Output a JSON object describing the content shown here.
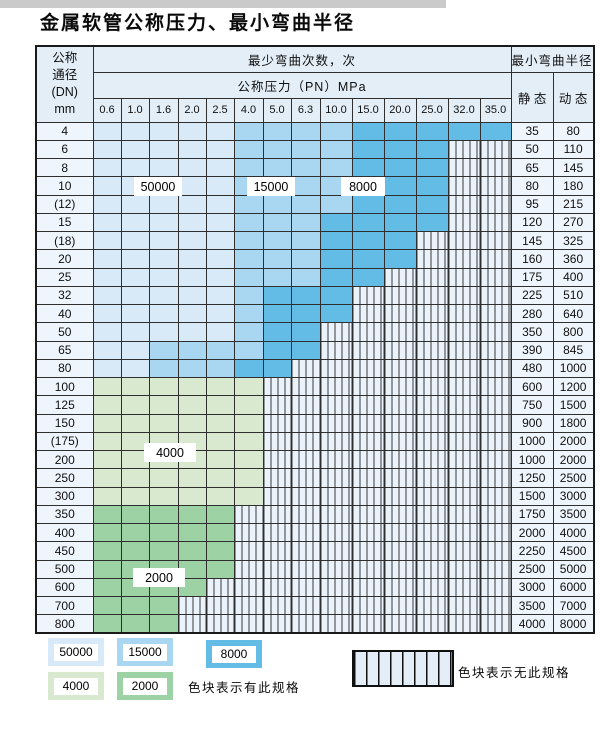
{
  "page": {
    "title": "金属软管公称压力、最小弯曲半径"
  },
  "table": {
    "corner_lines": [
      "公称",
      "通径",
      "(DN)",
      "mm"
    ],
    "bend_cycles_header": "最少弯曲次数，次",
    "pressure_header": "公称压力（PN）MPa",
    "radius_header": "最小弯曲半径",
    "static_header": "静 态",
    "dynamic_header": "动 态",
    "pressure_cols": [
      "0.6",
      "1.0",
      "1.6",
      "2.0",
      "2.5",
      "4.0",
      "5.0",
      "6.3",
      "10.0",
      "15.0",
      "20.0",
      "25.0",
      "32.0",
      "35.0"
    ],
    "zones": {
      "A": {
        "label": "50000",
        "color": "#d8eaf7"
      },
      "B": {
        "label": "15000",
        "color": "#a9d6f0"
      },
      "C": {
        "label": "8000",
        "color": "#62bce6"
      },
      "D": {
        "label": "4000",
        "color": "#d8e9d0"
      },
      "E": {
        "label": "2000",
        "color": "#9dd2a4"
      }
    },
    "no_spec_code": "-",
    "rows": [
      {
        "dn": "4",
        "cells": "AAAAABBBBCCCCC",
        "static": "35",
        "dynamic": "80"
      },
      {
        "dn": "6",
        "cells": "AAAAABBBBCCC--",
        "static": "50",
        "dynamic": "110"
      },
      {
        "dn": "8",
        "cells": "AAAAABBBBCCC--",
        "static": "65",
        "dynamic": "145"
      },
      {
        "dn": "10",
        "cells": "AAAAABBBBCCC--",
        "static": "80",
        "dynamic": "180"
      },
      {
        "dn": "(12)",
        "cells": "AAAAABBBBCCC--",
        "static": "95",
        "dynamic": "215"
      },
      {
        "dn": "15",
        "cells": "AAAAABBBCCCC--",
        "static": "120",
        "dynamic": "270"
      },
      {
        "dn": "(18)",
        "cells": "AAAAABBBCCC---",
        "static": "145",
        "dynamic": "325"
      },
      {
        "dn": "20",
        "cells": "AAAAABBBCCC---",
        "static": "160",
        "dynamic": "360"
      },
      {
        "dn": "25",
        "cells": "AAAAABBBCC----",
        "static": "175",
        "dynamic": "400"
      },
      {
        "dn": "32",
        "cells": "AAAAABCCC-----",
        "static": "225",
        "dynamic": "510"
      },
      {
        "dn": "40",
        "cells": "AAAAABCCC-----",
        "static": "280",
        "dynamic": "640"
      },
      {
        "dn": "50",
        "cells": "AAAAABCC------",
        "static": "350",
        "dynamic": "800"
      },
      {
        "dn": "65",
        "cells": "AABBBBCC------",
        "static": "390",
        "dynamic": "845"
      },
      {
        "dn": "80",
        "cells": "AABBBCC-------",
        "static": "480",
        "dynamic": "1000"
      },
      {
        "dn": "100",
        "cells": "DDDDDD--------",
        "static": "600",
        "dynamic": "1200"
      },
      {
        "dn": "125",
        "cells": "DDDDDD--------",
        "static": "750",
        "dynamic": "1500"
      },
      {
        "dn": "150",
        "cells": "DDDDDD--------",
        "static": "900",
        "dynamic": "1800"
      },
      {
        "dn": "(175)",
        "cells": "DDDDDD--------",
        "static": "1000",
        "dynamic": "2000"
      },
      {
        "dn": "200",
        "cells": "DDDDDD--------",
        "static": "1000",
        "dynamic": "2000"
      },
      {
        "dn": "250",
        "cells": "DDDDDD--------",
        "static": "1250",
        "dynamic": "2500"
      },
      {
        "dn": "300",
        "cells": "DDDDDD--------",
        "static": "1500",
        "dynamic": "3000"
      },
      {
        "dn": "350",
        "cells": "EEEEE---------",
        "static": "1750",
        "dynamic": "3500"
      },
      {
        "dn": "400",
        "cells": "EEEEE---------",
        "static": "2000",
        "dynamic": "4000"
      },
      {
        "dn": "450",
        "cells": "EEEEE---------",
        "static": "2250",
        "dynamic": "4500"
      },
      {
        "dn": "500",
        "cells": "EEEEE---------",
        "static": "2500",
        "dynamic": "5000"
      },
      {
        "dn": "600",
        "cells": "EEEE----------",
        "static": "3000",
        "dynamic": "6000"
      },
      {
        "dn": "700",
        "cells": "EEE-----------",
        "static": "3500",
        "dynamic": "7000"
      },
      {
        "dn": "800",
        "cells": "EEE-----------",
        "static": "4000",
        "dynamic": "8000"
      }
    ],
    "overlay_labels": [
      "50000",
      "15000",
      "8000",
      "4000",
      "2000"
    ]
  },
  "legend": {
    "items": [
      {
        "label": "50000",
        "zone": "A"
      },
      {
        "label": "15000",
        "zone": "B"
      },
      {
        "label": "8000",
        "zone": "C"
      },
      {
        "label": "4000",
        "zone": "D"
      },
      {
        "label": "2000",
        "zone": "E"
      }
    ],
    "has_spec_note": "色块表示有此规格",
    "no_spec_note": "色块表示无此规格"
  }
}
